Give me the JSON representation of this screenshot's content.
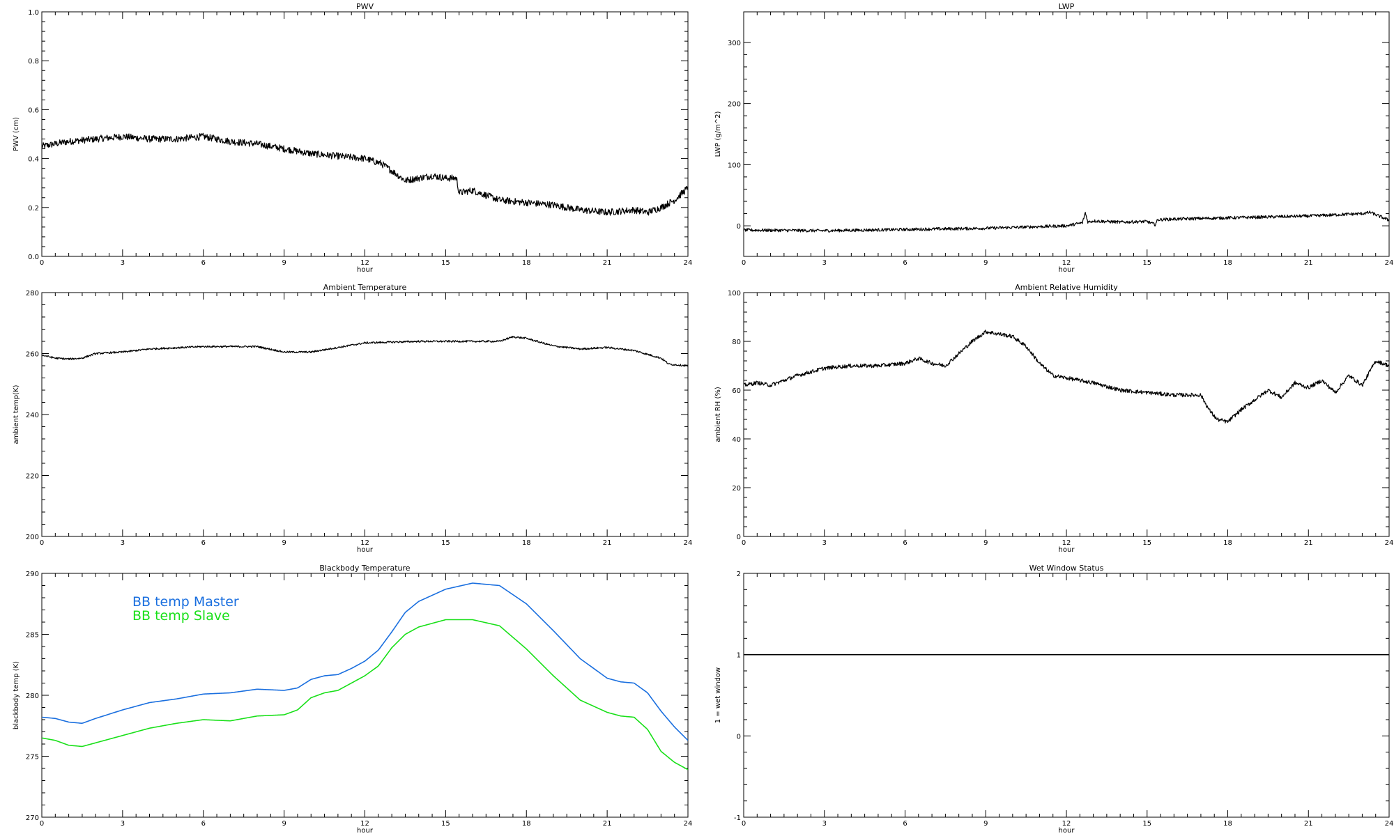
{
  "chart_data": [
    {
      "type": "line",
      "title": "PWV",
      "xlabel": "hour",
      "ylabel": "PWV (cm)",
      "xlim": [
        0,
        24
      ],
      "ylim": [
        0,
        1
      ],
      "xticks": [
        0,
        3,
        6,
        9,
        12,
        15,
        18,
        21,
        24
      ],
      "yticks": [
        0.0,
        0.2,
        0.4,
        0.6,
        0.8,
        1.0
      ],
      "ytick_labels": [
        "0.0",
        "0.2",
        "0.4",
        "0.6",
        "0.8",
        "1.0"
      ],
      "series": [
        {
          "color": "#000000",
          "noise": 0.014,
          "x": [
            0,
            1,
            2,
            3,
            4,
            5,
            6,
            7,
            8,
            9,
            10,
            11,
            12,
            12.6,
            13,
            13.5,
            14,
            14.5,
            15,
            15.4,
            15.5,
            16,
            17,
            18,
            19,
            20,
            21,
            22,
            22.5,
            23,
            23.5,
            24
          ],
          "y": [
            0.45,
            0.47,
            0.48,
            0.49,
            0.48,
            0.48,
            0.49,
            0.47,
            0.46,
            0.44,
            0.42,
            0.41,
            0.4,
            0.38,
            0.35,
            0.31,
            0.32,
            0.33,
            0.32,
            0.32,
            0.26,
            0.27,
            0.23,
            0.22,
            0.21,
            0.19,
            0.18,
            0.19,
            0.18,
            0.2,
            0.23,
            0.28
          ]
        }
      ]
    },
    {
      "type": "line",
      "title": "LWP",
      "xlabel": "hour",
      "ylabel": "LWP (g/m^2)",
      "xlim": [
        0,
        24
      ],
      "ylim": [
        -50,
        350
      ],
      "xticks": [
        0,
        3,
        6,
        9,
        12,
        15,
        18,
        21,
        24
      ],
      "yticks": [
        0,
        100,
        200,
        300
      ],
      "ytick_labels": [
        "0",
        "100",
        "200",
        "300"
      ],
      "series": [
        {
          "color": "#000000",
          "noise": 2.5,
          "x": [
            0,
            3,
            6,
            9,
            12,
            12.6,
            12.7,
            12.8,
            13,
            14,
            15,
            15.3,
            15.4,
            16,
            18,
            21,
            23,
            23.3,
            24
          ],
          "y": [
            -7,
            -8,
            -6,
            -4,
            0,
            5,
            22,
            6,
            8,
            6,
            7,
            2,
            10,
            11,
            13,
            16,
            20,
            22,
            9
          ]
        }
      ]
    },
    {
      "type": "line",
      "title": "Ambient Temperature",
      "xlabel": "hour",
      "ylabel": "ambient temp(K)",
      "xlim": [
        0,
        24
      ],
      "ylim": [
        200,
        280
      ],
      "xticks": [
        0,
        3,
        6,
        9,
        12,
        15,
        18,
        21,
        24
      ],
      "yticks": [
        200,
        220,
        240,
        260,
        280
      ],
      "ytick_labels": [
        "200",
        "220",
        "240",
        "260",
        "280"
      ],
      "series": [
        {
          "color": "#000000",
          "noise": 0.3,
          "x": [
            0,
            0.5,
            1,
            1.5,
            2,
            3,
            4,
            6,
            8,
            9,
            10,
            11,
            12,
            14,
            16,
            17,
            17.5,
            18,
            19,
            20,
            21,
            22,
            23,
            23.3,
            24
          ],
          "y": [
            259.5,
            258.5,
            258.2,
            258.5,
            260,
            260.5,
            261.5,
            262.3,
            262.3,
            260.5,
            260.5,
            262,
            263.5,
            264,
            264,
            264,
            265.5,
            265,
            262.5,
            261.5,
            262,
            261,
            258.5,
            256.5,
            256
          ]
        }
      ]
    },
    {
      "type": "line",
      "title": "Ambient Relative Humidity",
      "xlabel": "hour",
      "ylabel": "ambient RH (%)",
      "xlim": [
        0,
        24
      ],
      "ylim": [
        0,
        100
      ],
      "xticks": [
        0,
        3,
        6,
        9,
        12,
        15,
        18,
        21,
        24
      ],
      "yticks": [
        0,
        20,
        40,
        60,
        80,
        100
      ],
      "ytick_labels": [
        "0",
        "20",
        "40",
        "60",
        "80",
        "100"
      ],
      "series": [
        {
          "color": "#000000",
          "noise": 0.8,
          "x": [
            0,
            0.5,
            1,
            2,
            3,
            4,
            5,
            6,
            6.5,
            7,
            7.5,
            8,
            8.5,
            9,
            9.5,
            10,
            10.5,
            11,
            11.5,
            12,
            13,
            14,
            15,
            16,
            17,
            17.3,
            17.6,
            18,
            18.5,
            19,
            19.5,
            20,
            20.5,
            21,
            21.5,
            22,
            22.5,
            23,
            23.5,
            24
          ],
          "y": [
            62,
            63,
            62,
            66,
            69,
            70,
            70,
            71,
            73,
            71,
            70,
            75,
            80,
            84,
            83,
            82,
            78,
            71,
            66,
            65,
            63,
            60,
            59,
            58,
            58,
            52,
            48,
            47,
            52,
            56,
            60,
            57,
            63,
            61,
            64,
            59,
            66,
            62,
            72,
            70
          ]
        }
      ]
    },
    {
      "type": "line",
      "title": "Blackbody Temperature",
      "xlabel": "hour",
      "ylabel": "blackbody temp (K)",
      "xlim": [
        0,
        24
      ],
      "ylim": [
        270,
        290
      ],
      "xticks": [
        0,
        3,
        6,
        9,
        12,
        15,
        18,
        21,
        24
      ],
      "yticks": [
        270,
        275,
        280,
        285,
        290
      ],
      "ytick_labels": [
        "270",
        "275",
        "280",
        "285",
        "290"
      ],
      "legend": {
        "placement": "upper-left"
      },
      "series": [
        {
          "name": "BB temp Master",
          "color": "#1a6fdf",
          "noise": 0,
          "x": [
            0,
            0.5,
            1,
            1.5,
            2,
            3,
            4,
            5,
            6,
            7,
            8,
            9,
            9.5,
            10,
            10.5,
            11,
            11.5,
            12,
            12.5,
            13,
            13.5,
            14,
            15,
            16,
            17,
            18,
            19,
            20,
            21,
            21.5,
            22,
            22.5,
            23,
            23.5,
            24
          ],
          "y": [
            278.2,
            278.1,
            277.8,
            277.7,
            278.1,
            278.8,
            279.4,
            279.7,
            280.1,
            280.2,
            280.5,
            280.4,
            280.6,
            281.3,
            281.6,
            281.7,
            282.2,
            282.8,
            283.7,
            285.2,
            286.8,
            287.7,
            288.7,
            289.2,
            289,
            287.5,
            285.3,
            283,
            281.4,
            281.1,
            281,
            280.2,
            278.7,
            277.4,
            276.3
          ]
        },
        {
          "name": "BB temp Slave",
          "color": "#19e019",
          "noise": 0,
          "x": [
            0,
            0.5,
            1,
            1.5,
            2,
            3,
            4,
            5,
            6,
            7,
            8,
            9,
            9.5,
            10,
            10.5,
            11,
            11.5,
            12,
            12.5,
            13,
            13.5,
            14,
            15,
            16,
            17,
            18,
            19,
            20,
            21,
            21.5,
            22,
            22.5,
            23,
            23.5,
            24
          ],
          "y": [
            276.5,
            276.3,
            275.9,
            275.8,
            276.1,
            276.7,
            277.3,
            277.7,
            278,
            277.9,
            278.3,
            278.4,
            278.8,
            279.8,
            280.2,
            280.4,
            281,
            281.6,
            282.4,
            283.9,
            285,
            285.6,
            286.2,
            286.2,
            285.7,
            283.8,
            281.6,
            279.6,
            278.6,
            278.3,
            278.2,
            277.2,
            275.4,
            274.5,
            273.9
          ]
        }
      ]
    },
    {
      "type": "line",
      "title": "Wet Window Status",
      "xlabel": "hour",
      "ylabel": "1 = wet window",
      "xlim": [
        0,
        24
      ],
      "ylim": [
        -1,
        2
      ],
      "xticks": [
        0,
        3,
        6,
        9,
        12,
        15,
        18,
        21,
        24
      ],
      "yticks": [
        -1,
        0,
        1,
        2
      ],
      "ytick_labels": [
        "-1",
        "0",
        "1",
        "2"
      ],
      "series": [
        {
          "color": "#000000",
          "noise": 0,
          "x": [
            0,
            24
          ],
          "y": [
            1,
            1
          ]
        }
      ]
    }
  ]
}
